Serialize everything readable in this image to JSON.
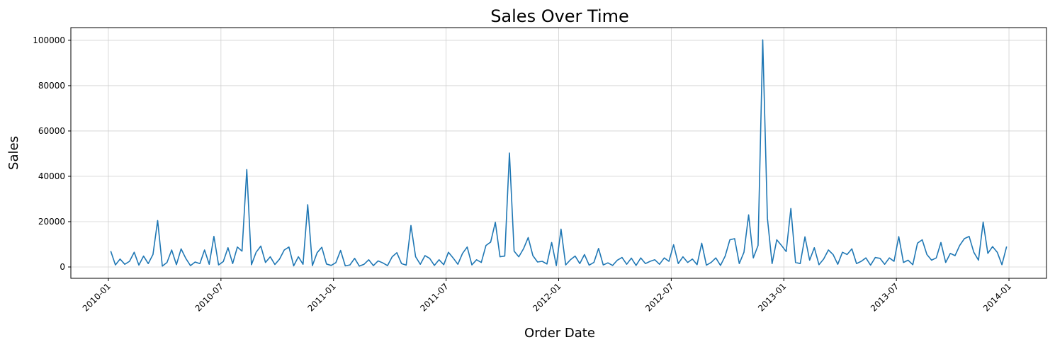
{
  "chart_data": {
    "type": "line",
    "title": "Sales Over Time",
    "x_label": "Order Date",
    "y_label": "Sales",
    "x": [
      "2010-01",
      "2010-01",
      "2010-01",
      "2010-01",
      "2010-02",
      "2010-02",
      "2010-02",
      "2010-02",
      "2010-03",
      "2010-03",
      "2010-03",
      "2010-03",
      "2010-04",
      "2010-04",
      "2010-04",
      "2010-04",
      "2010-05",
      "2010-05",
      "2010-05",
      "2010-05",
      "2010-06",
      "2010-06",
      "2010-06",
      "2010-06",
      "2010-07",
      "2010-07",
      "2010-07",
      "2010-07",
      "2010-08",
      "2010-08",
      "2010-08",
      "2010-08",
      "2010-09",
      "2010-09",
      "2010-09",
      "2010-09",
      "2010-10",
      "2010-10",
      "2010-10",
      "2010-10",
      "2010-11",
      "2010-11",
      "2010-11",
      "2010-11",
      "2010-12",
      "2010-12",
      "2010-12",
      "2010-12",
      "2011-01",
      "2011-01",
      "2011-01",
      "2011-01",
      "2011-02",
      "2011-02",
      "2011-02",
      "2011-02",
      "2011-03",
      "2011-03",
      "2011-03",
      "2011-03",
      "2011-04",
      "2011-04",
      "2011-04",
      "2011-04",
      "2011-05",
      "2011-05",
      "2011-05",
      "2011-05",
      "2011-06",
      "2011-06",
      "2011-06",
      "2011-06",
      "2011-07",
      "2011-07",
      "2011-07",
      "2011-07",
      "2011-08",
      "2011-08",
      "2011-08",
      "2011-08",
      "2011-09",
      "2011-09",
      "2011-09",
      "2011-09",
      "2011-10",
      "2011-10",
      "2011-10",
      "2011-10",
      "2011-11",
      "2011-11",
      "2011-11",
      "2011-11",
      "2011-12",
      "2011-12",
      "2011-12",
      "2011-12",
      "2012-01",
      "2012-01",
      "2012-01",
      "2012-01",
      "2012-02",
      "2012-02",
      "2012-02",
      "2012-02",
      "2012-03",
      "2012-03",
      "2012-03",
      "2012-03",
      "2012-04",
      "2012-04",
      "2012-04",
      "2012-04",
      "2012-05",
      "2012-05",
      "2012-05",
      "2012-05",
      "2012-06",
      "2012-06",
      "2012-06",
      "2012-06",
      "2012-07",
      "2012-07",
      "2012-07",
      "2012-07",
      "2012-08",
      "2012-08",
      "2012-08",
      "2012-08",
      "2012-09",
      "2012-09",
      "2012-09",
      "2012-09",
      "2012-10",
      "2012-10",
      "2012-10",
      "2012-10",
      "2012-11",
      "2012-11",
      "2012-11",
      "2012-11",
      "2012-12",
      "2012-12",
      "2012-12",
      "2012-12",
      "2013-01",
      "2013-01",
      "2013-01",
      "2013-01",
      "2013-02",
      "2013-02",
      "2013-02",
      "2013-02",
      "2013-03",
      "2013-03",
      "2013-03",
      "2013-03",
      "2013-04",
      "2013-04",
      "2013-04",
      "2013-04",
      "2013-05",
      "2013-05",
      "2013-05",
      "2013-05",
      "2013-06",
      "2013-06",
      "2013-06",
      "2013-06",
      "2013-07",
      "2013-07",
      "2013-07",
      "2013-07",
      "2013-08",
      "2013-08",
      "2013-08",
      "2013-08",
      "2013-09",
      "2013-09",
      "2013-09",
      "2013-09",
      "2013-10",
      "2013-10",
      "2013-10",
      "2013-10",
      "2013-11",
      "2013-11",
      "2013-11",
      "2013-11",
      "2013-12",
      "2013-12",
      "2013-12",
      "2013-12"
    ],
    "values": [
      7000,
      900,
      3500,
      1200,
      2500,
      6500,
      800,
      4800,
      1500,
      5500,
      20500,
      400,
      2000,
      7500,
      1000,
      8000,
      3800,
      600,
      2200,
      1500,
      7500,
      1200,
      13500,
      900,
      2400,
      8500,
      1500,
      8800,
      7000,
      43000,
      1000,
      6500,
      9200,
      2000,
      4500,
      1100,
      3500,
      7500,
      8800,
      500,
      4500,
      1200,
      27500,
      600,
      6300,
      8700,
      1300,
      700,
      1900,
      7300,
      500,
      900,
      3800,
      400,
      1200,
      3200,
      600,
      2700,
      1800,
      600,
      4500,
      6300,
      1500,
      800,
      18300,
      4500,
      1200,
      5000,
      3800,
      700,
      3200,
      1000,
      6500,
      4000,
      1200,
      6000,
      8800,
      900,
      3200,
      2000,
      9500,
      11000,
      19700,
      4500,
      4800,
      50300,
      7000,
      4500,
      8000,
      13000,
      5000,
      2200,
      2500,
      1300,
      10800,
      600,
      16700,
      900,
      3200,
      4800,
      1500,
      5500,
      800,
      2000,
      8200,
      900,
      1800,
      700,
      3000,
      4200,
      1200,
      3900,
      700,
      4000,
      1500,
      2500,
      3200,
      1200,
      4000,
      2500,
      9800,
      1500,
      4500,
      2000,
      3500,
      1000,
      10500,
      800,
      2000,
      4000,
      700,
      4800,
      12000,
      12500,
      1500,
      6500,
      23000,
      4000,
      9500,
      100200,
      21500,
      1500,
      12000,
      9500,
      6800,
      25800,
      2000,
      1500,
      13300,
      3000,
      8500,
      1000,
      3500,
      7500,
      5500,
      1200,
      6500,
      5500,
      8000,
      1500,
      2500,
      4000,
      800,
      4200,
      3800,
      1200,
      4000,
      2500,
      13400,
      2000,
      3000,
      1000,
      10500,
      12000,
      5500,
      3000,
      4000,
      10800,
      2000,
      6000,
      5000,
      9500,
      12500,
      13500,
      6500,
      3000,
      19800,
      6000,
      9000,
      6500,
      1000,
      9000
    ],
    "color": "#1f77b4",
    "xlim": [
      "2009-11",
      "2014-03"
    ],
    "xticks": [
      "2010-01",
      "2010-07",
      "2011-01",
      "2011-07",
      "2012-01",
      "2012-07",
      "2013-01",
      "2013-07",
      "2014-01"
    ],
    "ylim": [
      -5000,
      105600
    ],
    "yticks": [
      0,
      20000,
      40000,
      60000,
      80000,
      100000
    ],
    "grid": true
  }
}
